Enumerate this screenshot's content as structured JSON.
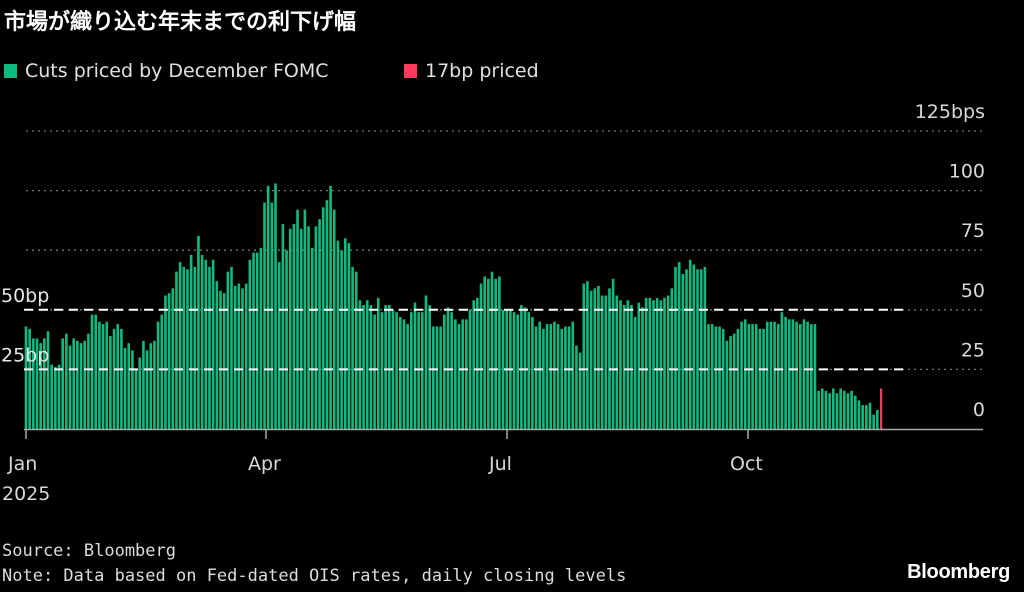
{
  "title": "市場が織り込む年末までの利下げ幅",
  "legend": [
    {
      "label": "Cuts priced by December FOMC",
      "color": "#10b981"
    },
    {
      "label": "17bp priced",
      "color": "#ff3b5c"
    }
  ],
  "source": "Source: Bloomberg",
  "note": "Note: Data based on Fed-dated OIS rates, daily closing levels",
  "logo": "Bloomberg",
  "chart_data": {
    "type": "bar",
    "title": "市場が織り込む年末までの利下げ幅",
    "xlabel": "",
    "ylabel": "",
    "ylim": [
      0,
      125
    ],
    "xlim": [
      "2025-01-01",
      "2025-12-31"
    ],
    "y_ticks": [
      "0",
      "25",
      "50",
      "75",
      "100",
      "125bps"
    ],
    "x_ticks": [
      "Jan",
      "Apr",
      "Jul",
      "Oct"
    ],
    "x_year_label": "2025",
    "grid": true,
    "reference_lines": [
      {
        "label": "25bp",
        "value": 25
      },
      {
        "label": "50bp",
        "value": 50
      }
    ],
    "series": [
      {
        "name": "Cuts priced by December FOMC",
        "color": "#10b981",
        "values": [
          43,
          42,
          38,
          38,
          36,
          38,
          41,
          27,
          26,
          27,
          38,
          40,
          35,
          38,
          37,
          36,
          37,
          40,
          48,
          48,
          45,
          44,
          45,
          39,
          42,
          44,
          42,
          34,
          36,
          33,
          25,
          30,
          37,
          33,
          36,
          37,
          45,
          48,
          56,
          57,
          59,
          66,
          70,
          68,
          67,
          73,
          68,
          81,
          73,
          71,
          68,
          71,
          62,
          58,
          57,
          66,
          68,
          60,
          61,
          59,
          61,
          71,
          74,
          74,
          76,
          95,
          102,
          95,
          103,
          70,
          86,
          75,
          84,
          86,
          92,
          84,
          92,
          85,
          76,
          85,
          88,
          93,
          96,
          102,
          92,
          79,
          75,
          80,
          78,
          68,
          66,
          54,
          52,
          54,
          52,
          48,
          55,
          49,
          52,
          52,
          50,
          49,
          47,
          46,
          44,
          49,
          53,
          49,
          49,
          56,
          52,
          43,
          43,
          43,
          48,
          51,
          49,
          46,
          44,
          46,
          46,
          50,
          54,
          55,
          61,
          64,
          63,
          66,
          63,
          64,
          50,
          50,
          50,
          49,
          48,
          52,
          51,
          49,
          47,
          43,
          45,
          42,
          44,
          44,
          45,
          44,
          42,
          43,
          43,
          45,
          35,
          32,
          61,
          62,
          58,
          59,
          60,
          56,
          56,
          59,
          63,
          56,
          54,
          52,
          54,
          52,
          47,
          53,
          51,
          55,
          55,
          54,
          55,
          54,
          55,
          56,
          59,
          68,
          70,
          65,
          67,
          71,
          69,
          67,
          67,
          68,
          44,
          44,
          43,
          43,
          42,
          37,
          39,
          40,
          42,
          45,
          46,
          44,
          44,
          44,
          42,
          42,
          45,
          45,
          45,
          44,
          49,
          47,
          46,
          46,
          45,
          44,
          46,
          45,
          44,
          44,
          16,
          17,
          16,
          15,
          17,
          15,
          17,
          16,
          15,
          16,
          14,
          12,
          10,
          10,
          11,
          6,
          8
        ]
      },
      {
        "name": "17bp priced",
        "color": "#ff3b5c",
        "values": [
          17
        ]
      }
    ]
  }
}
